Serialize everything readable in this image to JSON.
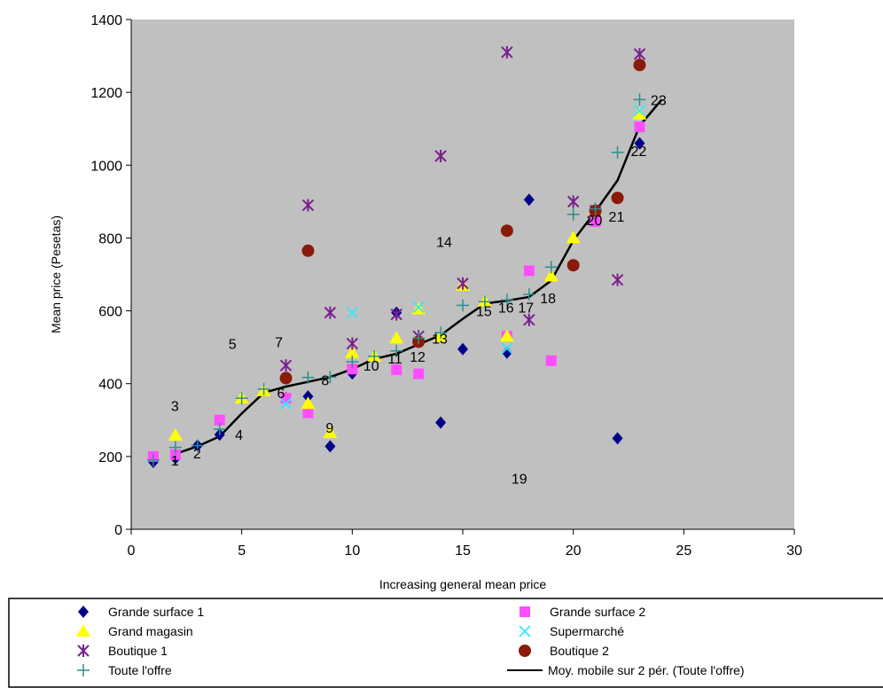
{
  "chart_data": {
    "type": "scatter",
    "xlabel": "Increasing general mean price",
    "ylabel": "Mean price (Pesetas)",
    "xlim": [
      0,
      30
    ],
    "ylim": [
      0,
      1400
    ],
    "x_ticks": [
      0,
      5,
      10,
      15,
      20,
      25,
      30
    ],
    "y_ticks": [
      0,
      200,
      400,
      600,
      800,
      1000,
      1200,
      1400
    ],
    "plot_background": "#c0c0c0",
    "grid": false,
    "legend_position": "bottom",
    "series": [
      {
        "name": "Grande surface 1",
        "marker": "diamond",
        "color": "#00008b",
        "points": [
          [
            1,
            185
          ],
          [
            2,
            195
          ],
          [
            3,
            230
          ],
          [
            4,
            260
          ],
          [
            7,
            360
          ],
          [
            8,
            365
          ],
          [
            9,
            228
          ],
          [
            10,
            428
          ],
          [
            12,
            595
          ],
          [
            13,
            520
          ],
          [
            14,
            293
          ],
          [
            15,
            495
          ],
          [
            17,
            485
          ],
          [
            18,
            905
          ],
          [
            22,
            250
          ],
          [
            23,
            1060
          ]
        ]
      },
      {
        "name": "Grande surface 2",
        "marker": "square",
        "color": "#ff4dff",
        "points": [
          [
            1,
            200
          ],
          [
            2,
            205
          ],
          [
            4,
            300
          ],
          [
            7,
            360
          ],
          [
            8,
            320
          ],
          [
            10,
            440
          ],
          [
            12,
            438
          ],
          [
            13,
            427
          ],
          [
            17,
            530
          ],
          [
            18,
            710
          ],
          [
            19,
            463
          ],
          [
            21,
            845
          ],
          [
            23,
            1105
          ]
        ]
      },
      {
        "name": "Grand magasin",
        "marker": "triangle",
        "color": "#ffff00",
        "points": [
          [
            2,
            258
          ],
          [
            5,
            360
          ],
          [
            6,
            380
          ],
          [
            8,
            345
          ],
          [
            9,
            265
          ],
          [
            10,
            485
          ],
          [
            11,
            475
          ],
          [
            12,
            525
          ],
          [
            13,
            605
          ],
          [
            14,
            530
          ],
          [
            15,
            670
          ],
          [
            16,
            625
          ],
          [
            17,
            530
          ],
          [
            19,
            695
          ],
          [
            20,
            800
          ],
          [
            21,
            875
          ],
          [
            23,
            1140
          ]
        ]
      },
      {
        "name": "Supermarché",
        "marker": "x",
        "color": "#33e6ff",
        "points": [
          [
            7,
            345
          ],
          [
            10,
            595
          ],
          [
            13,
            610
          ],
          [
            17,
            497
          ],
          [
            23,
            1150
          ]
        ]
      },
      {
        "name": "Boutique 1",
        "marker": "asterisk",
        "color": "#7a1f8f",
        "points": [
          [
            7,
            450
          ],
          [
            8,
            890
          ],
          [
            9,
            595
          ],
          [
            10,
            510
          ],
          [
            12,
            590
          ],
          [
            13,
            530
          ],
          [
            14,
            1025
          ],
          [
            15,
            675
          ],
          [
            17,
            1310
          ],
          [
            18,
            575
          ],
          [
            20,
            900
          ],
          [
            21,
            875
          ],
          [
            22,
            685
          ],
          [
            23,
            1305
          ]
        ]
      },
      {
        "name": "Boutique 2",
        "marker": "circle",
        "color": "#8b1a0a",
        "points": [
          [
            7,
            415
          ],
          [
            8,
            765
          ],
          [
            13,
            515
          ],
          [
            17,
            820
          ],
          [
            20,
            725
          ],
          [
            21,
            875
          ],
          [
            22,
            910
          ],
          [
            23,
            1275
          ]
        ]
      },
      {
        "name": "Toute l'offre",
        "marker": "plus",
        "color": "#2a8f8f",
        "points": [
          [
            1,
            190
          ],
          [
            2,
            225
          ],
          [
            3,
            230
          ],
          [
            4,
            275
          ],
          [
            5,
            360
          ],
          [
            6,
            385
          ],
          [
            8,
            417
          ],
          [
            9,
            418
          ],
          [
            10,
            460
          ],
          [
            11,
            475
          ],
          [
            12,
            490
          ],
          [
            13,
            525
          ],
          [
            14,
            540
          ],
          [
            15,
            615
          ],
          [
            16,
            625
          ],
          [
            17,
            630
          ],
          [
            18,
            645
          ],
          [
            19,
            720
          ],
          [
            20,
            865
          ],
          [
            21,
            880
          ],
          [
            22,
            1035
          ],
          [
            23,
            1180
          ]
        ]
      }
    ],
    "moving_average": {
      "name": "Moy. mobile sur 2 pér. (Toute l'offre)",
      "color": "#000000",
      "points": [
        [
          2,
          207
        ],
        [
          3,
          228
        ],
        [
          4,
          255
        ],
        [
          5,
          318
        ],
        [
          6,
          375
        ],
        [
          7,
          392
        ],
        [
          8,
          405
        ],
        [
          9,
          418
        ],
        [
          10,
          440
        ],
        [
          11,
          468
        ],
        [
          12,
          482
        ],
        [
          13,
          508
        ],
        [
          14,
          533
        ],
        [
          15,
          578
        ],
        [
          16,
          620
        ],
        [
          17,
          628
        ],
        [
          18,
          638
        ],
        [
          19,
          683
        ],
        [
          20,
          793
        ],
        [
          21,
          873
        ],
        [
          22,
          958
        ],
        [
          23,
          1108
        ],
        [
          24,
          1180
        ]
      ]
    },
    "point_labels": [
      {
        "text": "1",
        "x": 1.8,
        "y": 190
      },
      {
        "text": "2",
        "x": 2.8,
        "y": 210
      },
      {
        "text": "3",
        "x": 1.8,
        "y": 340
      },
      {
        "text": "4",
        "x": 4.7,
        "y": 260
      },
      {
        "text": "5",
        "x": 4.4,
        "y": 510
      },
      {
        "text": "6",
        "x": 6.6,
        "y": 375
      },
      {
        "text": "7",
        "x": 6.5,
        "y": 515
      },
      {
        "text": "8",
        "x": 8.6,
        "y": 410
      },
      {
        "text": "9",
        "x": 8.8,
        "y": 280
      },
      {
        "text": "10",
        "x": 10.5,
        "y": 450
      },
      {
        "text": "11",
        "x": 11.6,
        "y": 470
      },
      {
        "text": "12",
        "x": 12.6,
        "y": 475
      },
      {
        "text": "13",
        "x": 13.6,
        "y": 525
      },
      {
        "text": "14",
        "x": 13.8,
        "y": 790
      },
      {
        "text": "15",
        "x": 15.6,
        "y": 600
      },
      {
        "text": "16",
        "x": 16.6,
        "y": 610
      },
      {
        "text": "17",
        "x": 17.5,
        "y": 610
      },
      {
        "text": "18",
        "x": 18.5,
        "y": 635
      },
      {
        "text": "19",
        "x": 17.2,
        "y": 140
      },
      {
        "text": "20",
        "x": 20.6,
        "y": 850
      },
      {
        "text": "21",
        "x": 21.6,
        "y": 860
      },
      {
        "text": "22",
        "x": 22.6,
        "y": 1040
      },
      {
        "text": "23",
        "x": 23.5,
        "y": 1180
      }
    ]
  },
  "legend": {
    "items": [
      {
        "label": "Grande surface 1",
        "series": 0,
        "col": 0,
        "row": 0
      },
      {
        "label": "Grand magasin",
        "series": 2,
        "col": 0,
        "row": 1
      },
      {
        "label": "Boutique 1",
        "series": 4,
        "col": 0,
        "row": 2
      },
      {
        "label": "Toute l'offre",
        "series": 6,
        "col": 0,
        "row": 3
      },
      {
        "label": "Grande surface 2",
        "series": 1,
        "col": 1,
        "row": 0
      },
      {
        "label": "Supermarché",
        "series": 3,
        "col": 1,
        "row": 1
      },
      {
        "label": "Boutique 2",
        "series": 5,
        "col": 1,
        "row": 2
      },
      {
        "label": "Moy. mobile sur 2 pér. (Toute l'offre)",
        "series": "moving_average",
        "col": 1,
        "row": 3
      }
    ]
  }
}
